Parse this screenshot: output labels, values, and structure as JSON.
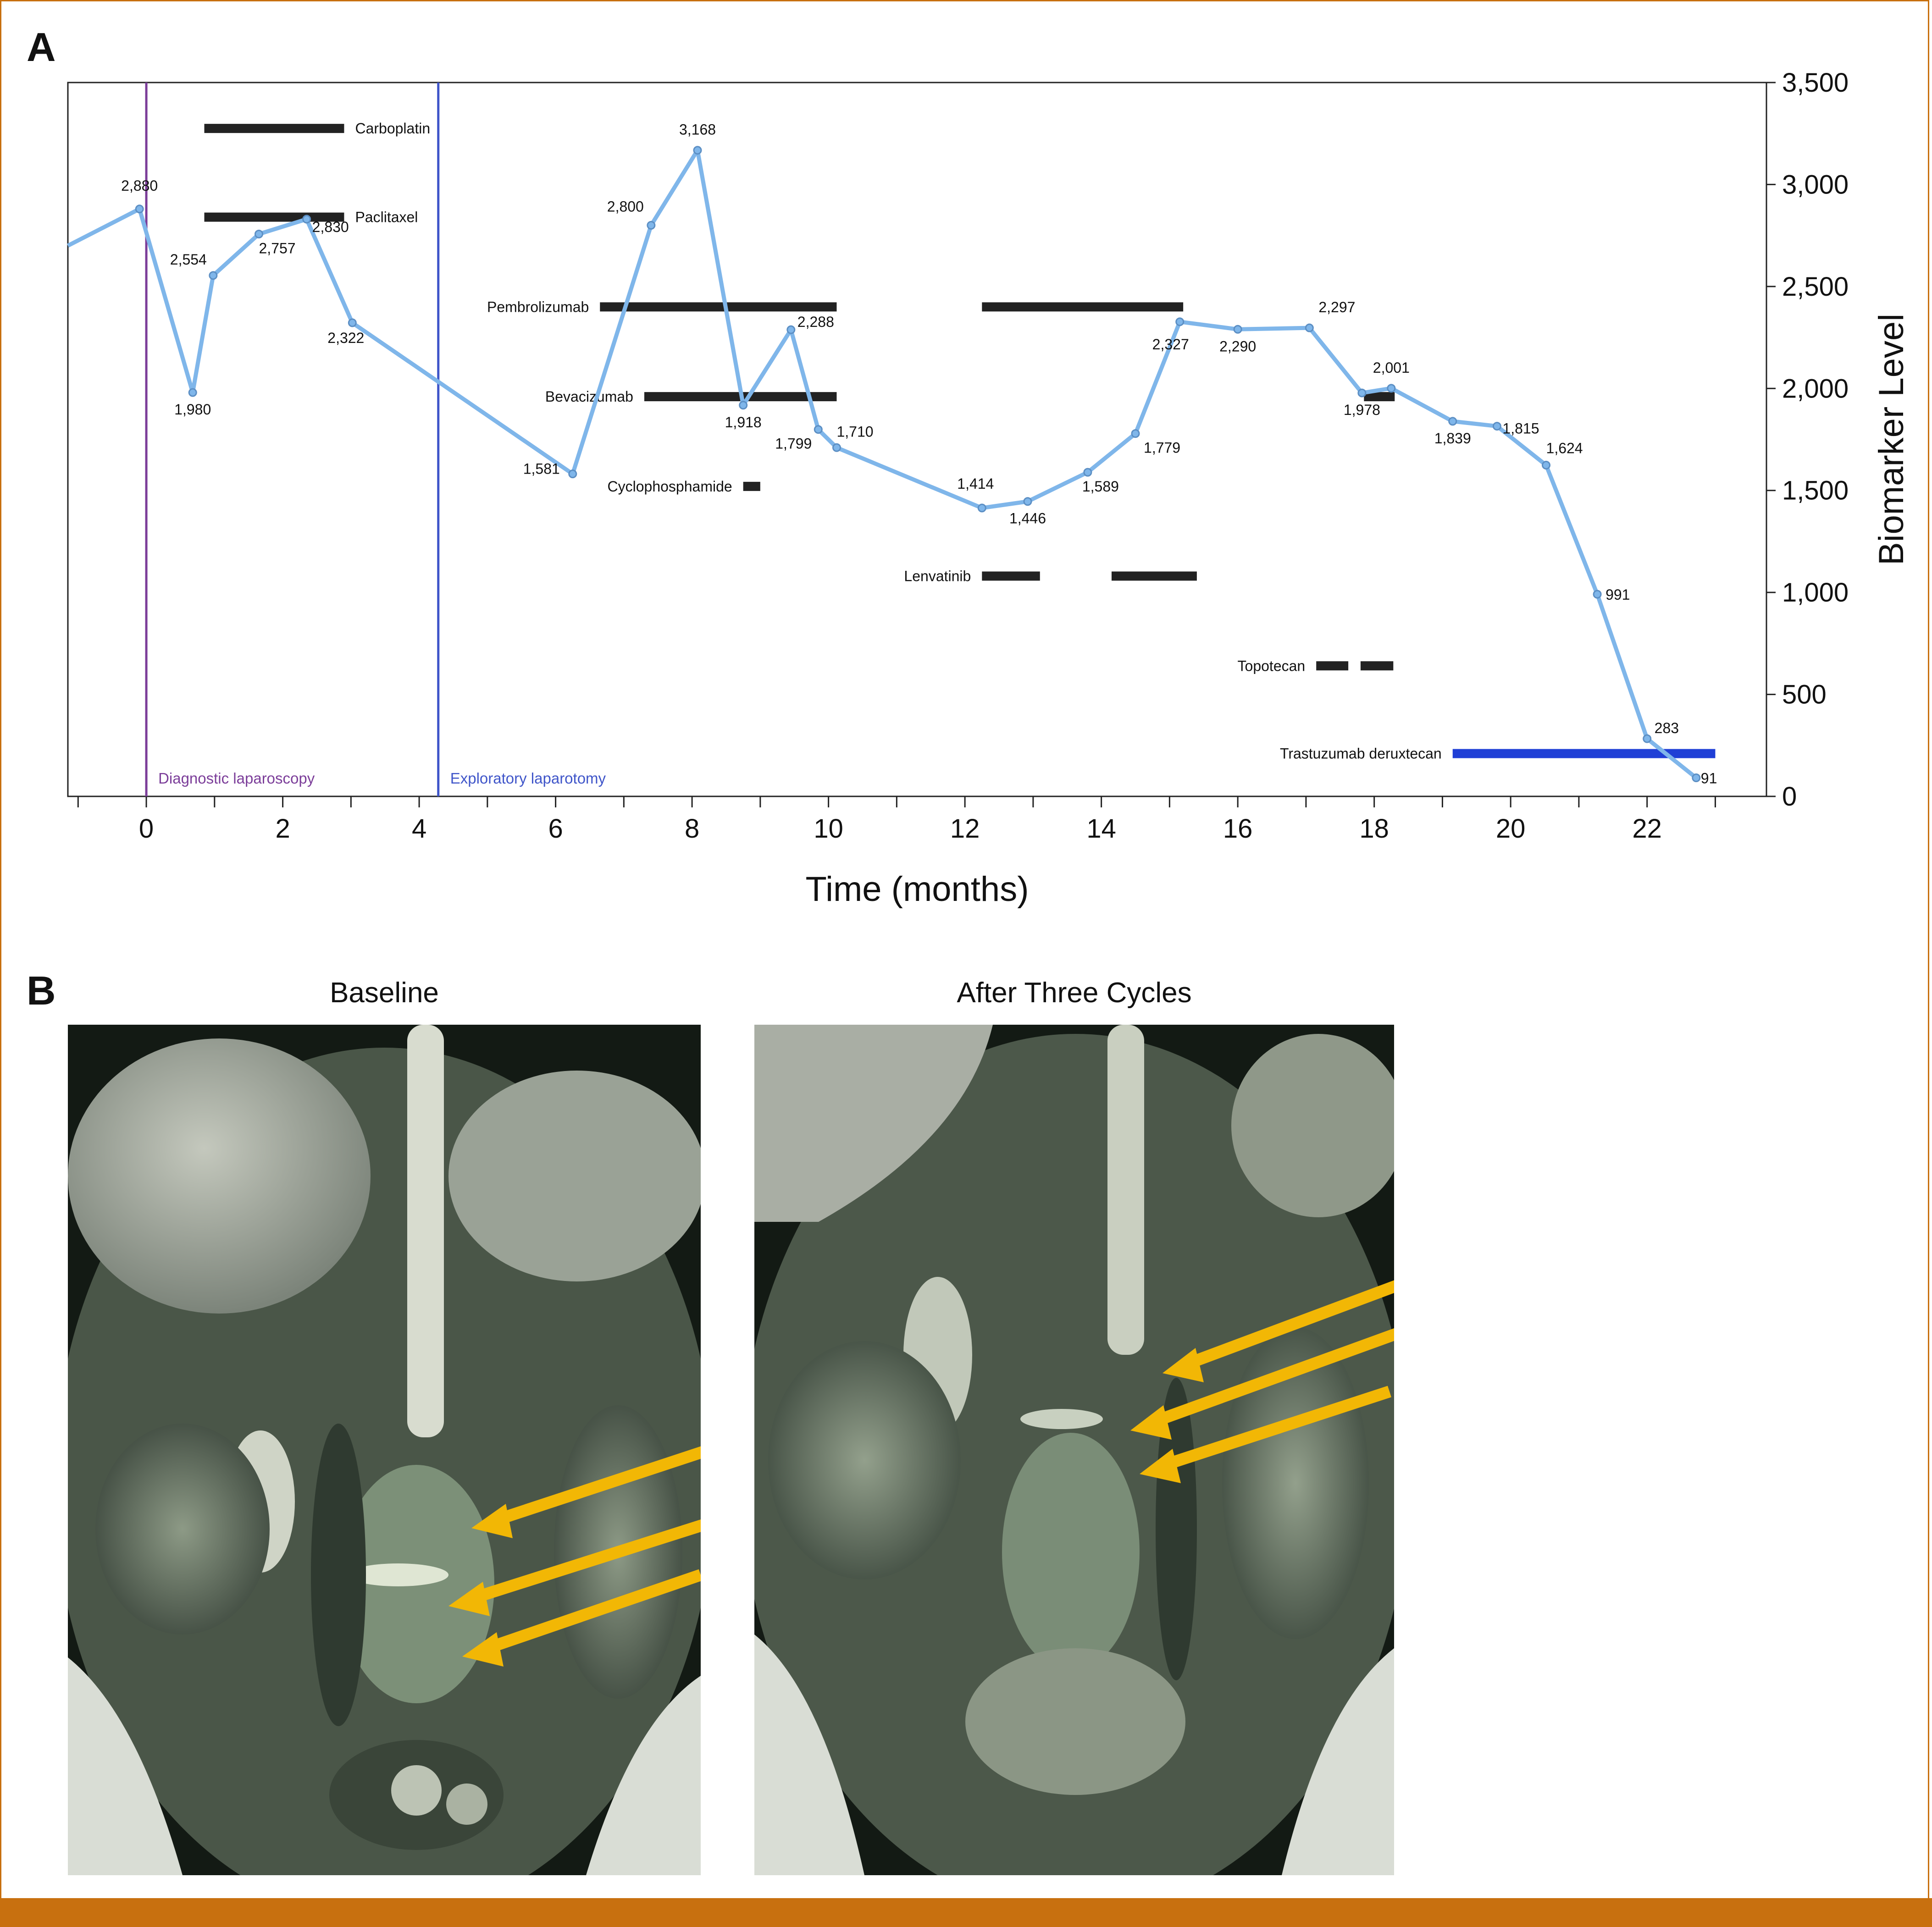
{
  "panels": {
    "a_label": "A",
    "b_label": "B",
    "b_titles": [
      "Baseline",
      "After Three Cycles"
    ]
  },
  "colors": {
    "frame": "#c8700f",
    "line": "#7fb6ea",
    "marker": "#5c8fc4",
    "treatment": "#222222",
    "trastuzumab": "#1f3fd6",
    "diag_lap": "#7b3d99",
    "explor_lap": "#3f55c9",
    "arrow": "#f2b705"
  },
  "chart_data": {
    "type": "line",
    "xlabel": "Time (months)",
    "ylabel": "Biomarker Level",
    "xlim": [
      -1.15,
      23.75
    ],
    "ylim": [
      0,
      3500
    ],
    "xticks": [
      0,
      2,
      4,
      6,
      8,
      10,
      12,
      14,
      16,
      18,
      20,
      22
    ],
    "xticks_minor": [
      -1,
      1,
      3,
      5,
      7,
      9,
      11,
      13,
      15,
      17,
      19,
      21,
      23
    ],
    "yticks": [
      0,
      500,
      1000,
      1500,
      2000,
      2500,
      3000,
      3500
    ],
    "ytick_labels": [
      "0",
      "500",
      "1,000",
      "1,500",
      "2,000",
      "2,500",
      "3,000",
      "3,500"
    ],
    "y_axis_side": "right",
    "grid": false,
    "series": [
      {
        "points": [
          {
            "x": -1.15,
            "y": 2700,
            "label": ""
          },
          {
            "x": -0.1,
            "y": 2880,
            "label": "2,880"
          },
          {
            "x": 0.68,
            "y": 1980,
            "label": "1,980"
          },
          {
            "x": 0.98,
            "y": 2554,
            "label": "2,554"
          },
          {
            "x": 1.65,
            "y": 2757,
            "label": "2,757"
          },
          {
            "x": 2.35,
            "y": 2830,
            "label": "2,830"
          },
          {
            "x": 3.02,
            "y": 2322,
            "label": "2,322"
          },
          {
            "x": 6.25,
            "y": 1581,
            "label": "1,581"
          },
          {
            "x": 7.4,
            "y": 2800,
            "label": "2,800"
          },
          {
            "x": 8.08,
            "y": 3168,
            "label": "3,168"
          },
          {
            "x": 8.75,
            "y": 1918,
            "label": "1,918"
          },
          {
            "x": 9.45,
            "y": 2288,
            "label": "2,288"
          },
          {
            "x": 9.85,
            "y": 1799,
            "label": "1,799"
          },
          {
            "x": 10.12,
            "y": 1710,
            "label": "1,710"
          },
          {
            "x": 12.25,
            "y": 1414,
            "label": "1,414"
          },
          {
            "x": 12.92,
            "y": 1446,
            "label": "1,446"
          },
          {
            "x": 13.8,
            "y": 1589,
            "label": "1,589"
          },
          {
            "x": 14.5,
            "y": 1779,
            "label": "1,779"
          },
          {
            "x": 15.15,
            "y": 2327,
            "label": "2,327"
          },
          {
            "x": 16.0,
            "y": 2290,
            "label": "2,290"
          },
          {
            "x": 17.05,
            "y": 2297,
            "label": "2,297"
          },
          {
            "x": 17.82,
            "y": 1978,
            "label": "1,978"
          },
          {
            "x": 18.25,
            "y": 2001,
            "label": "2,001"
          },
          {
            "x": 19.15,
            "y": 1839,
            "label": "1,839"
          },
          {
            "x": 19.8,
            "y": 1815,
            "label": "1,815"
          },
          {
            "x": 20.52,
            "y": 1624,
            "label": "1,624"
          },
          {
            "x": 21.27,
            "y": 991,
            "label": "991"
          },
          {
            "x": 22.0,
            "y": 283,
            "label": "283"
          },
          {
            "x": 22.72,
            "y": 91,
            "label": "91"
          }
        ]
      }
    ],
    "treatments": [
      {
        "name": "Carboplatin",
        "y": 3275,
        "segments": [
          [
            0.85,
            2.9
          ]
        ]
      },
      {
        "name": "Paclitaxel",
        "y": 2840,
        "segments": [
          [
            0.85,
            2.9
          ]
        ]
      },
      {
        "name": "Pembrolizumab",
        "y": 2400,
        "segments": [
          [
            6.65,
            10.12
          ],
          [
            12.25,
            15.2
          ]
        ]
      },
      {
        "name": "Bevacizumab",
        "y": 1960,
        "segments": [
          [
            7.3,
            10.12
          ]
        ]
      },
      {
        "name": "Cyclophosphamide",
        "y": 1520,
        "segments": [
          [
            8.75,
            9.0
          ]
        ]
      },
      {
        "name": "Lenvatinib",
        "y": 1080,
        "segments": [
          [
            12.25,
            13.1
          ],
          [
            14.15,
            15.4
          ]
        ]
      },
      {
        "name": "Topotecan",
        "y": 640,
        "segments": [
          [
            17.15,
            17.62
          ],
          [
            17.8,
            18.28
          ]
        ]
      },
      {
        "name": "",
        "y": 1960,
        "segments": [
          [
            17.85,
            18.3
          ]
        ]
      },
      {
        "name": "Trastuzumab deruxtecan",
        "y": 210,
        "segments": [
          [
            19.15,
            23.0
          ]
        ],
        "highlight": true
      }
    ],
    "events": [
      {
        "x": 0.0,
        "label": "Diagnostic laparoscopy"
      },
      {
        "x": 4.28,
        "label": "Exploratory laparotomy"
      }
    ]
  }
}
